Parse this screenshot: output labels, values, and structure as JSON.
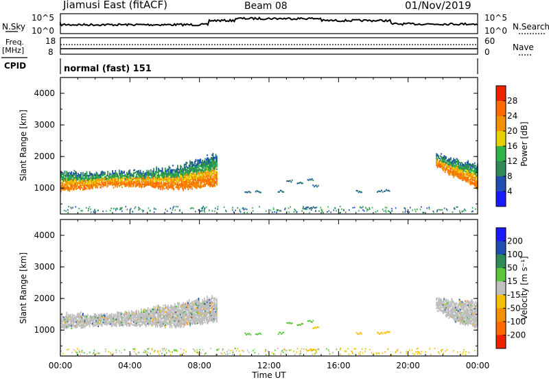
{
  "header": {
    "station": "Jiamusi East (fitACF)",
    "beam": "Beam 08",
    "date": "01/Nov/2019"
  },
  "top_panels": {
    "nsky_label": "N.Sky",
    "nsky_ticks": [
      "10^5",
      "10^0"
    ],
    "nsearch_label": "N.Search",
    "nsearch_ticks": [
      "10^5",
      "10^0"
    ],
    "freq_label": "Freq.",
    "freq_unit": "[MHz]",
    "freq_ticks": [
      "18",
      "8"
    ],
    "nave_label": "Nave",
    "nave_ticks": [
      "60",
      "0"
    ],
    "cpid_label": "CPID",
    "cpid_text": "normal (fast) 151"
  },
  "chart_data": [
    {
      "type": "heatmap",
      "name_ref": "power",
      "ylabel": "Slant Range [km]",
      "xlabel": "",
      "ylim": [
        180,
        4500
      ],
      "yticks": [
        "1000",
        "2000",
        "3000",
        "4000"
      ],
      "colorbar": {
        "label": "Power [dB]",
        "ticks": [
          "4",
          "8",
          "12",
          "16",
          "20",
          "24",
          "28"
        ],
        "range": [
          0,
          30
        ],
        "colors": [
          "#1a1aff",
          "#1f4fb0",
          "#2e8b57",
          "#2fb34a",
          "#e8d000",
          "#f39000",
          "#ff6a00",
          "#f02000"
        ]
      },
      "echo_regions": [
        {
          "t_start": 0.0,
          "t_end": 9.0,
          "range_low": [
            900,
            1050,
            1050,
            950,
            1100
          ],
          "range_high": [
            1500,
            1450,
            1500,
            1650,
            2050
          ],
          "peak_power_db": 28
        },
        {
          "t_start": 21.6,
          "t_end": 24.0,
          "range_low": [
            1700,
            1300,
            1000
          ],
          "range_high": [
            2050,
            1850,
            1700
          ],
          "peak_power_db": 26
        }
      ]
    },
    {
      "type": "heatmap",
      "name_ref": "velocity",
      "ylabel": "Slant Range [km]",
      "xlabel": "Time UT",
      "ylim": [
        180,
        4500
      ],
      "yticks": [
        "1000",
        "2000",
        "3000",
        "4000"
      ],
      "xticks": [
        "00:00",
        "04:00",
        "08:00",
        "12:00",
        "16:00",
        "20:00",
        "00:00"
      ],
      "colorbar": {
        "label": "Velocity [m s⁻¹]",
        "ticks": [
          "200",
          "100",
          "50",
          "15",
          "-15",
          "-50",
          "-100",
          "-200"
        ],
        "colors": [
          "#1a1aff",
          "#1f4fb0",
          "#2e8b57",
          "#5ac83a",
          "#c0c0c0",
          "#f3c000",
          "#f39000",
          "#ff6a00",
          "#f02000"
        ]
      },
      "echo_regions": [
        {
          "t_start": 0.0,
          "t_end": 9.0,
          "range_low": [
            1050,
            1150,
            1150,
            1100,
            1300
          ],
          "range_high": [
            1500,
            1450,
            1600,
            1800,
            2050
          ],
          "velocity": "ground scatter (~0)"
        },
        {
          "t_start": 21.6,
          "t_end": 24.0,
          "range_low": [
            1650,
            1250,
            1100
          ],
          "range_high": [
            2000,
            1900,
            1850
          ],
          "velocity": "ground scatter (~0)"
        }
      ]
    }
  ],
  "colors": {
    "axis": "#000000",
    "ground_scatter": "#bebebe"
  }
}
